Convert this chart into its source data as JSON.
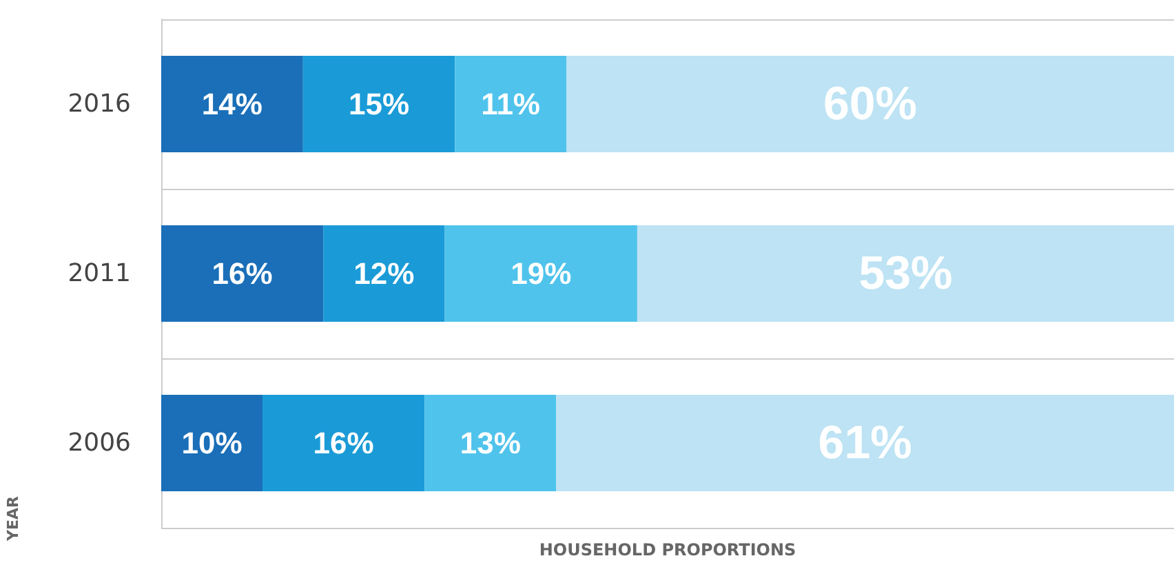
{
  "chart_data": {
    "type": "bar",
    "orientation": "horizontal",
    "stacked": true,
    "categories": [
      "2016",
      "2011",
      "2006"
    ],
    "xlabel": "HOUSEHOLD PROPORTIONS",
    "ylabel": "YEAR",
    "grid": "y",
    "series": [
      {
        "color": "#1a6fb8",
        "values": [
          14,
          16,
          10
        ],
        "value_labels": [
          "14%",
          "16%",
          "10%"
        ]
      },
      {
        "color": "#1a9bd7",
        "values": [
          15,
          12,
          16
        ],
        "value_labels": [
          "15%",
          "12%",
          "16%"
        ]
      },
      {
        "color": "#4fc3ec",
        "values": [
          11,
          19,
          13
        ],
        "value_labels": [
          "11%",
          "19%",
          "13%"
        ]
      },
      {
        "color": "#bde3f4",
        "values": [
          60,
          53,
          61
        ],
        "value_labels": [
          "60%",
          "53%",
          "61%"
        ]
      }
    ]
  }
}
